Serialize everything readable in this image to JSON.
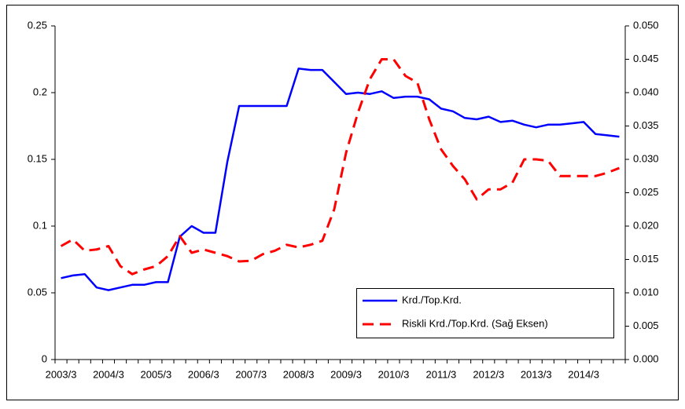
{
  "chart_data": {
    "type": "line",
    "categories": [
      "2003/3",
      null,
      null,
      null,
      "2004/3",
      null,
      null,
      null,
      "2005/3",
      null,
      null,
      null,
      "2006/3",
      null,
      null,
      null,
      "2007/3",
      null,
      null,
      null,
      "2008/3",
      null,
      null,
      null,
      "2009/3",
      null,
      null,
      null,
      "2010/3",
      null,
      null,
      null,
      "2011/3",
      null,
      null,
      null,
      "2012/3",
      null,
      null,
      null,
      "2013/3",
      null,
      null,
      null,
      "2014/3",
      null,
      null,
      null
    ],
    "series": [
      {
        "name": "Krd./Top.Krd.",
        "color": "#0000ff",
        "dash": "solid",
        "values": [
          0.061,
          0.063,
          0.064,
          0.054,
          0.052,
          0.054,
          0.056,
          0.056,
          0.058,
          0.058,
          0.092,
          0.1,
          0.095,
          0.095,
          0.148,
          0.19,
          0.19,
          0.19,
          0.19,
          0.19,
          0.218,
          0.217,
          0.217,
          0.208,
          0.199,
          0.2,
          0.199,
          0.201,
          0.196,
          0.197,
          0.197,
          0.195,
          0.188,
          0.186,
          0.181,
          0.18,
          0.182,
          0.178,
          0.179,
          0.176,
          0.174,
          0.176,
          0.176,
          0.177,
          0.178,
          0.169,
          0.168,
          0.167
        ]
      },
      {
        "name": "Riskli Krd./Top.Krd. (Sağ Eksen)",
        "color": "#ff0000",
        "dash": "dashed",
        "axis": "y2",
        "values": [
          0.017,
          0.018,
          0.0163,
          0.0165,
          0.017,
          0.014,
          0.0128,
          0.0135,
          0.014,
          0.0155,
          0.0185,
          0.016,
          0.0165,
          0.016,
          0.0155,
          0.0147,
          0.0148,
          0.0158,
          0.0163,
          0.0172,
          0.0168,
          0.0172,
          0.0178,
          0.0225,
          0.031,
          0.037,
          0.042,
          0.045,
          0.045,
          0.0425,
          0.0415,
          0.036,
          0.0315,
          0.029,
          0.027,
          0.024,
          0.0255,
          0.0255,
          0.0265,
          0.03,
          0.03,
          0.0298,
          0.0275,
          0.0275,
          0.0275,
          0.0275,
          0.028,
          0.0287
        ]
      }
    ],
    "ylim": [
      0,
      0.25
    ],
    "yticks": [
      0,
      0.05,
      0.1,
      0.15,
      0.2,
      0.25
    ],
    "y2lim": [
      0,
      0.05
    ],
    "y2ticks": [
      {
        "value": 0,
        "label": "0.000"
      },
      {
        "value": 0.005,
        "label": "0.005"
      },
      {
        "value": 0.01,
        "label": "0.010"
      },
      {
        "value": 0.015,
        "label": "0.015"
      },
      {
        "value": 0.02,
        "label": "0.020"
      },
      {
        "value": 0.025,
        "label": "0.025"
      },
      {
        "value": 0.03,
        "label": "0.030"
      },
      {
        "value": 0.035,
        "label": "0.035"
      },
      {
        "value": 0.04,
        "label": "0.040"
      },
      {
        "value": 0.045,
        "label": "0.045"
      },
      {
        "value": 0.05,
        "label": "0.050"
      }
    ],
    "grid": false,
    "legend": "lower-right"
  }
}
